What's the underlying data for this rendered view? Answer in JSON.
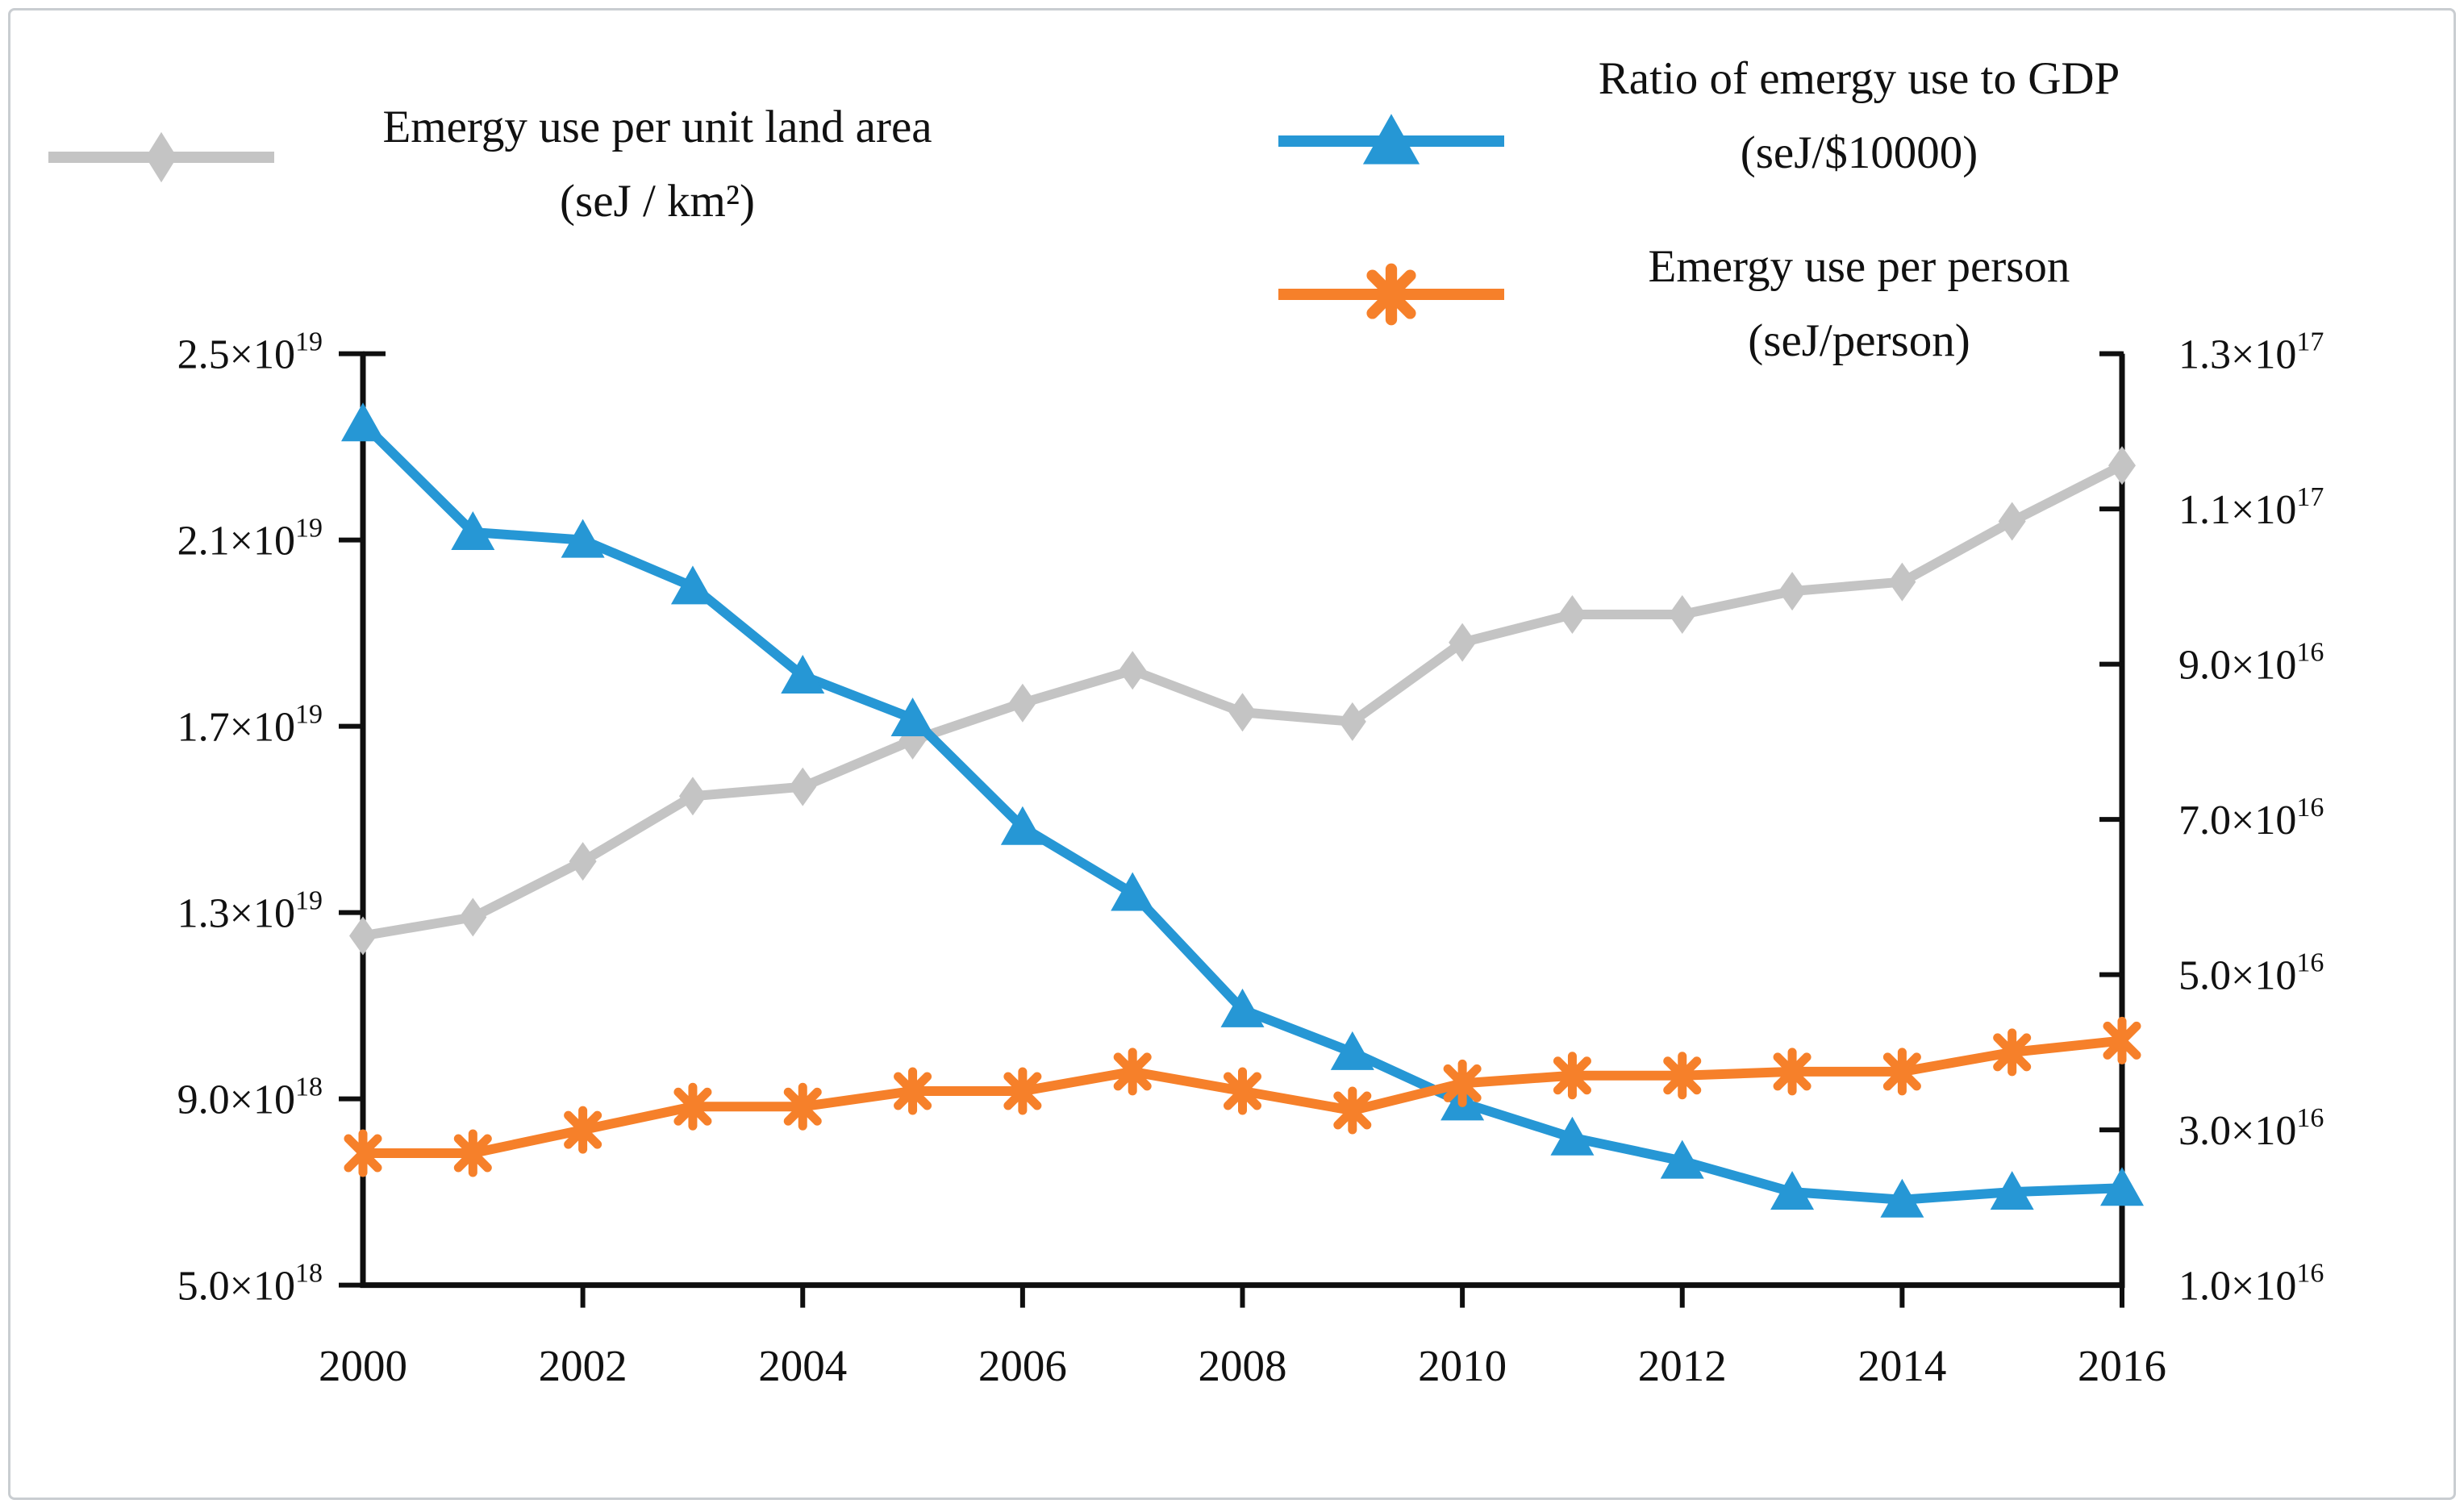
{
  "legend": {
    "items": [
      {
        "id": "land-area",
        "line1": "Emergy use per unit land area",
        "line2": "(seJ / km²)",
        "marker": "diamond",
        "color": "#c4c4c4"
      },
      {
        "id": "gdp-ratio",
        "line1": "Ratio of emergy use to GDP",
        "line2": "(seJ/$10000)",
        "marker": "triangle",
        "color": "#2697d5"
      },
      {
        "id": "per-person",
        "line1": "Emergy use per person",
        "line2": "(seJ/person)",
        "marker": "asterisk",
        "color": "#f6802a"
      }
    ]
  },
  "chart_data": {
    "type": "line",
    "x": [
      2000,
      2001,
      2002,
      2003,
      2004,
      2005,
      2006,
      2007,
      2008,
      2009,
      2010,
      2011,
      2012,
      2013,
      2014,
      2015,
      2016
    ],
    "x_tick_labels": [
      "2000",
      "2002",
      "2004",
      "2006",
      "2008",
      "2010",
      "2012",
      "2014",
      "2016"
    ],
    "x_tick_values": [
      2000,
      2002,
      2004,
      2006,
      2008,
      2010,
      2012,
      2014,
      2016
    ],
    "grid": false,
    "legend_position": "top",
    "left_axis": {
      "min": 5e+18,
      "max": 2.5e+19,
      "tick_values": [
        2.5e+19,
        2.1e+19,
        1.7e+19,
        1.3e+19,
        9e+18,
        5e+18
      ],
      "tick_labels": [
        [
          "2.5×10",
          "19"
        ],
        [
          "2.1×10",
          "19"
        ],
        [
          "1.7×10",
          "19"
        ],
        [
          "1.3×10",
          "19"
        ],
        [
          "9.0×10",
          "18"
        ],
        [
          "5.0×10",
          "18"
        ]
      ]
    },
    "right_axis": {
      "min": 1e+16,
      "max": 1.3e+17,
      "tick_values": [
        1.3e+17,
        1.1e+17,
        9e+16,
        7e+16,
        5e+16,
        3e+16,
        1e+16
      ],
      "tick_labels": [
        [
          "1.3×10",
          "17"
        ],
        [
          "1.1×10",
          "17"
        ],
        [
          "9.0×10",
          "16"
        ],
        [
          "7.0×10",
          "16"
        ],
        [
          "5.0×10",
          "16"
        ],
        [
          "3.0×10",
          "16"
        ],
        [
          "1.0×10",
          "16"
        ]
      ]
    },
    "series": [
      {
        "name": "Emergy use per unit land area (seJ / km²)",
        "axis": "left",
        "marker": "diamond",
        "color": "#c4c4c4",
        "values": [
          1.25e+19,
          1.29e+19,
          1.41e+19,
          1.55e+19,
          1.57e+19,
          1.67e+19,
          1.75e+19,
          1.82e+19,
          1.73e+19,
          1.71e+19,
          1.88e+19,
          1.94e+19,
          1.94e+19,
          1.99e+19,
          2.01e+19,
          2.14e+19,
          2.26e+19
        ]
      },
      {
        "name": "Ratio of emergy use to GDP (seJ/$10000)",
        "axis": "right",
        "marker": "triangle",
        "color": "#2697d5",
        "values": [
          1.21e+17,
          1.07e+17,
          1.06e+17,
          1e+17,
          8.85e+16,
          8.3e+16,
          6.9e+16,
          6.05e+16,
          4.55e+16,
          4e+16,
          3.35e+16,
          2.9e+16,
          2.6e+16,
          2.2e+16,
          2.1e+16,
          2.2e+16,
          2.25e+16
        ]
      },
      {
        "name": "Emergy use per person (seJ/person)",
        "axis": "right",
        "marker": "asterisk",
        "color": "#f6802a",
        "values": [
          2.7e+16,
          2.7e+16,
          3e+16,
          3.3e+16,
          3.3e+16,
          3.5e+16,
          3.5e+16,
          3.75e+16,
          3.5e+16,
          3.25e+16,
          3.6e+16,
          3.7e+16,
          3.7e+16,
          3.75e+16,
          3.75e+16,
          4e+16,
          4.15e+16
        ]
      }
    ]
  }
}
